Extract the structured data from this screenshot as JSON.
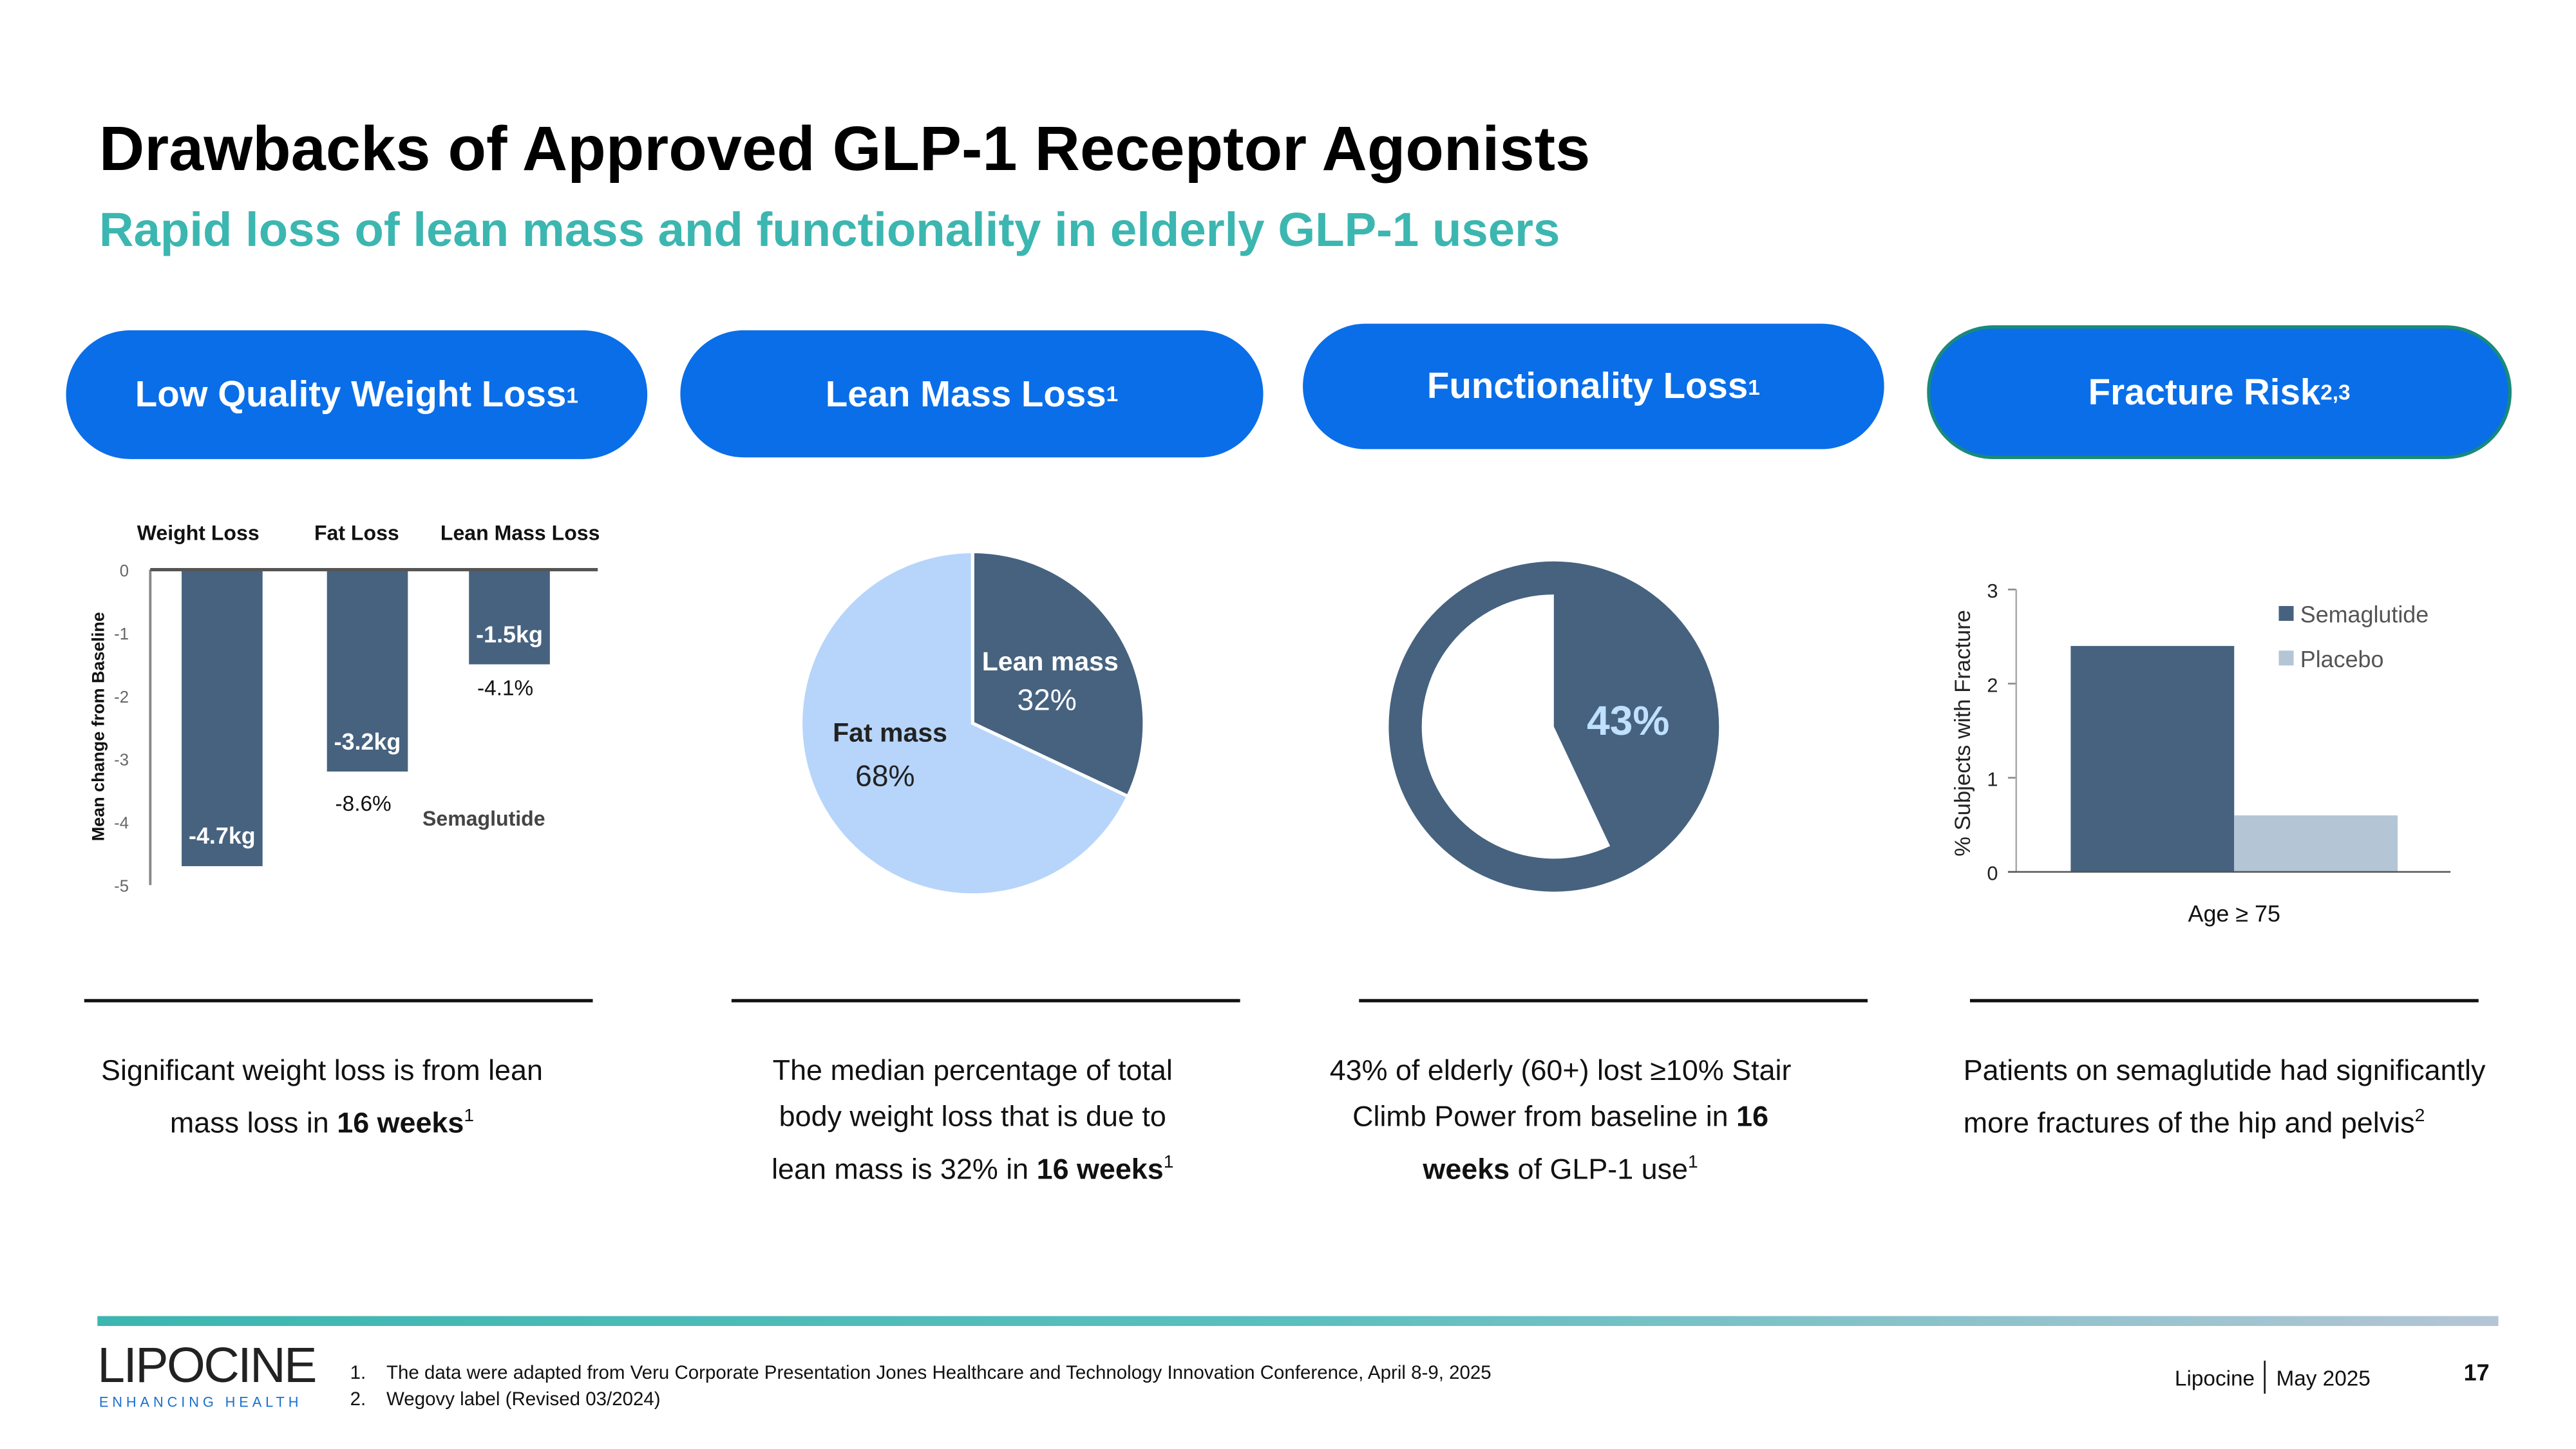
{
  "header": {
    "title": "Drawbacks of Approved GLP-1 Receptor Agonists",
    "subtitle": "Rapid loss of lean mass and functionality in elderly GLP-1 users"
  },
  "pills": [
    {
      "label": "Low Quality Weight Loss",
      "sup": "1"
    },
    {
      "label": "Lean Mass Loss",
      "sup": "1"
    },
    {
      "label": "Functionality Loss",
      "sup": "1"
    },
    {
      "label": "Fracture Risk",
      "sup": "2,3"
    }
  ],
  "descriptions": {
    "d1": {
      "pre": "Significant weight loss is from lean mass loss in ",
      "bold": "16 weeks",
      "sup": "1"
    },
    "d2": {
      "pre": "The median percentage of total body weight loss that is due to lean mass is 32% in ",
      "bold": "16 weeks",
      "sup": "1"
    },
    "d3": {
      "pre": "43% of elderly (60+) lost ≥10% Stair Climb Power from baseline in ",
      "bold": "16 weeks",
      "post": " of GLP-1 use",
      "sup": "1"
    },
    "d4": {
      "pre": "Patients on semaglutide had significantly more fractures of the hip and pelvis",
      "sup": "2"
    }
  },
  "colors": {
    "pill": "#0a6ee8",
    "accent": "#3cb6b0",
    "bar_dark": "#46627f",
    "bar_light": "#b4c5d6",
    "pie_light": "#b7d5fa"
  },
  "chart_data": [
    {
      "type": "bar",
      "categories": [
        "Weight Loss",
        "Fat Loss",
        "Lean Mass Loss"
      ],
      "values": [
        -4.7,
        -3.2,
        -1.5
      ],
      "value_labels": [
        "-4.7kg",
        "-3.2kg",
        "-1.5kg"
      ],
      "pct_labels": [
        "",
        "-8.6%",
        "-4.1%"
      ],
      "series_label": "Semaglutide",
      "ylabel": "Mean change from Baseline",
      "ylim": [
        -5,
        0
      ],
      "yticks": [
        "0",
        "-1",
        "-2",
        "-3",
        "-4",
        "-5"
      ]
    },
    {
      "type": "pie",
      "slices": [
        {
          "label": "Lean mass",
          "value": 32,
          "value_label": "32%"
        },
        {
          "label": "Fat mass",
          "value": 68,
          "value_label": "68%"
        }
      ]
    },
    {
      "type": "pie",
      "slices": [
        {
          "label": "",
          "value": 43,
          "value_label": "43%"
        },
        {
          "label": "",
          "value": 57
        }
      ]
    },
    {
      "type": "bar",
      "categories": [
        "Age ≥ 75"
      ],
      "series": [
        {
          "name": "Semaglutide",
          "values": [
            2.4
          ]
        },
        {
          "name": "Placebo",
          "values": [
            0.6
          ]
        }
      ],
      "ylabel": "% Subjects with Fracture",
      "ylim": [
        0,
        3
      ],
      "yticks": [
        "0",
        "1",
        "2",
        "3"
      ],
      "legend": "top-right"
    }
  ],
  "footer": {
    "logo": "LIPOCINE",
    "tagline": "ENHANCING HEALTH",
    "refs": [
      {
        "num": "1.",
        "text": "The data were adapted from Veru Corporate Presentation Jones Healthcare and Technology Innovation Conference, April 8-9, 2025"
      },
      {
        "num": "2.",
        "text": "Wegovy label (Revised 03/2024)"
      }
    ],
    "company": "Lipocine",
    "date": "May 2025",
    "page": "17"
  }
}
